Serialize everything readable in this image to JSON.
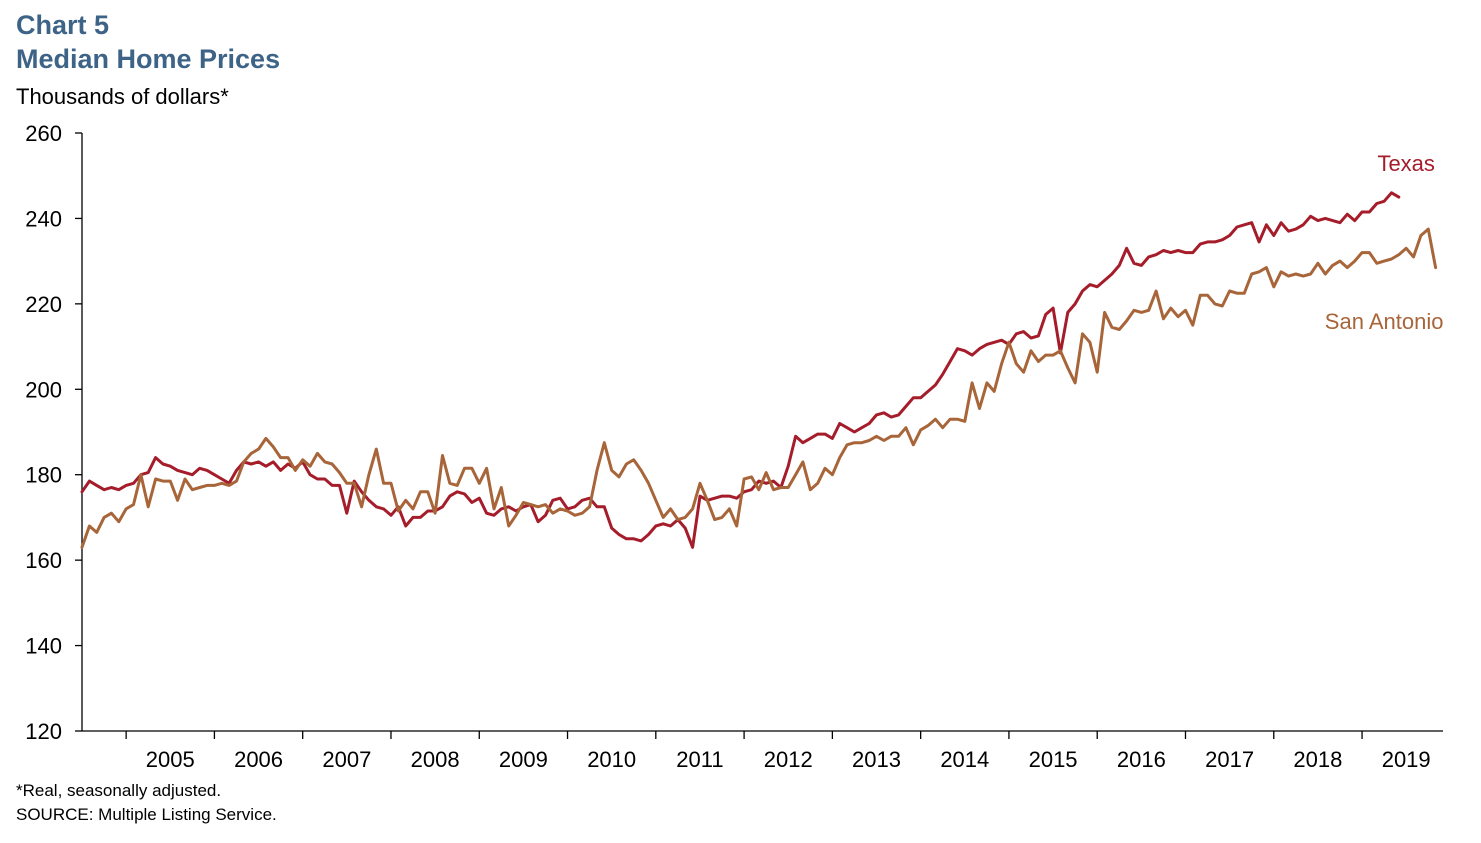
{
  "header": {
    "chart_number": "Chart 5",
    "title": "Median Home Prices",
    "units": "Thousands of dollars*"
  },
  "footer": {
    "note": "*Real, seasonally adjusted.",
    "source": "SOURCE: Multiple Listing Service."
  },
  "colors": {
    "texas": "#a51c2a",
    "san_antonio": "#a8653a",
    "axis": "#000000",
    "title": "#3d6387"
  },
  "chart_data": {
    "type": "line",
    "title": "Median Home Prices",
    "ylabel": "Thousands of dollars*",
    "ylim": [
      120,
      260
    ],
    "yticks": [
      120,
      140,
      160,
      180,
      200,
      220,
      240,
      260
    ],
    "xlim": [
      2004.5,
      2019.917
    ],
    "xticks": [
      "2005",
      "2006",
      "2007",
      "2008",
      "2009",
      "2010",
      "2011",
      "2012",
      "2013",
      "2014",
      "2015",
      "2016",
      "2017",
      "2018",
      "2019"
    ],
    "grid": false,
    "legend": "direct labels at line ends",
    "x_start": "2004-07",
    "frequency": "monthly",
    "series": [
      {
        "name": "Texas",
        "color": "#a51c2a",
        "label_pos": [
          2019.5,
          253
        ],
        "values": [
          176,
          178.5,
          177.5,
          176.5,
          177,
          176.5,
          177.5,
          178,
          180,
          180.5,
          184,
          182.5,
          182,
          181,
          180.5,
          180,
          181.5,
          181,
          180,
          179,
          178,
          181,
          183,
          182.5,
          183,
          182,
          183,
          181,
          182.5,
          181.5,
          183,
          180,
          179,
          179,
          177.5,
          177.5,
          171,
          178.5,
          176,
          174,
          172.5,
          172,
          170.5,
          172.5,
          168,
          170,
          170,
          171.5,
          171.5,
          172.5,
          175,
          176,
          175.5,
          173.5,
          174.5,
          171,
          170.5,
          172,
          172.5,
          171.5,
          172.5,
          173,
          169,
          170.5,
          174,
          174.5,
          172,
          172.5,
          174,
          174.5,
          172.5,
          172.5,
          167.5,
          166,
          165,
          165,
          164.5,
          166,
          168,
          168.5,
          168,
          169.5,
          167.5,
          163,
          175,
          174,
          174.5,
          175,
          175,
          174.5,
          176,
          176.5,
          178.5,
          178,
          178.5,
          177,
          182,
          189,
          187.5,
          188.5,
          189.5,
          189.5,
          188.5,
          192,
          191,
          190,
          191,
          192,
          194,
          194.5,
          193.5,
          194,
          196,
          198,
          198,
          199.5,
          201,
          203.5,
          206.5,
          209.5,
          209,
          208,
          209.5,
          210.5,
          211,
          211.5,
          210.5,
          213,
          213.5,
          212,
          212.5,
          217.5,
          219,
          208.5,
          218,
          220,
          223,
          224.5,
          224,
          225.5,
          227,
          229,
          233,
          229.5,
          229,
          231,
          231.5,
          232.5,
          232,
          232.5,
          232,
          232,
          234,
          234.5,
          234.5,
          235,
          236,
          238,
          238.5,
          239,
          234.5,
          238.5,
          236,
          239,
          237,
          237.5,
          238.5,
          240.5,
          239.5,
          240,
          239.5,
          239,
          241,
          239.5,
          241.5,
          241.5,
          243.5,
          244,
          246,
          245
        ]
      },
      {
        "name": "San Antonio",
        "color": "#a8653a",
        "label_pos": [
          2019.25,
          216
        ],
        "values": [
          163,
          168,
          166.5,
          170,
          171,
          169,
          172,
          173,
          180,
          172.5,
          179,
          178.5,
          178.5,
          174,
          179,
          176.5,
          177,
          177.5,
          177.5,
          178,
          177.5,
          178.5,
          183,
          185,
          186,
          188.5,
          186.5,
          184,
          184,
          181,
          183.5,
          182,
          185,
          183,
          182.5,
          180.5,
          178,
          178,
          172.5,
          180,
          186,
          178,
          178,
          171.5,
          174,
          172,
          176,
          176,
          171,
          184.5,
          178,
          177.5,
          181.5,
          181.5,
          178,
          181.5,
          172,
          177,
          168,
          170.5,
          173.5,
          173,
          172.5,
          173,
          171,
          172,
          171.5,
          170.5,
          171,
          172.5,
          181,
          187.5,
          181,
          179.5,
          182.5,
          183.5,
          181,
          178,
          174,
          170,
          172,
          169.5,
          170,
          172,
          178,
          174,
          169.5,
          170,
          172,
          168,
          179,
          179.5,
          176.5,
          180.5,
          176.5,
          177,
          177,
          180,
          183,
          176.5,
          178,
          181.5,
          180,
          184,
          187,
          187.5,
          187.5,
          188,
          189,
          188,
          189,
          189,
          191,
          187,
          190.5,
          191.5,
          193,
          191,
          193,
          193,
          192.5,
          201.5,
          195.5,
          201.5,
          199.5,
          206,
          211,
          206,
          204,
          209,
          206.5,
          208,
          208,
          209,
          205,
          201.5,
          213,
          211,
          204,
          218,
          214.5,
          214,
          216,
          218.5,
          218,
          218.5,
          223,
          216.5,
          219,
          217,
          218.5,
          215,
          222,
          222,
          220,
          219.5,
          223,
          222.5,
          222.5,
          227,
          227.5,
          228.5,
          224,
          227.5,
          226.5,
          227,
          226.5,
          227,
          229.5,
          227,
          229,
          230,
          228.5,
          230,
          232,
          232,
          229.5,
          230,
          230.5,
          231.5,
          233,
          231,
          236,
          237.5,
          228.5
        ]
      }
    ]
  }
}
